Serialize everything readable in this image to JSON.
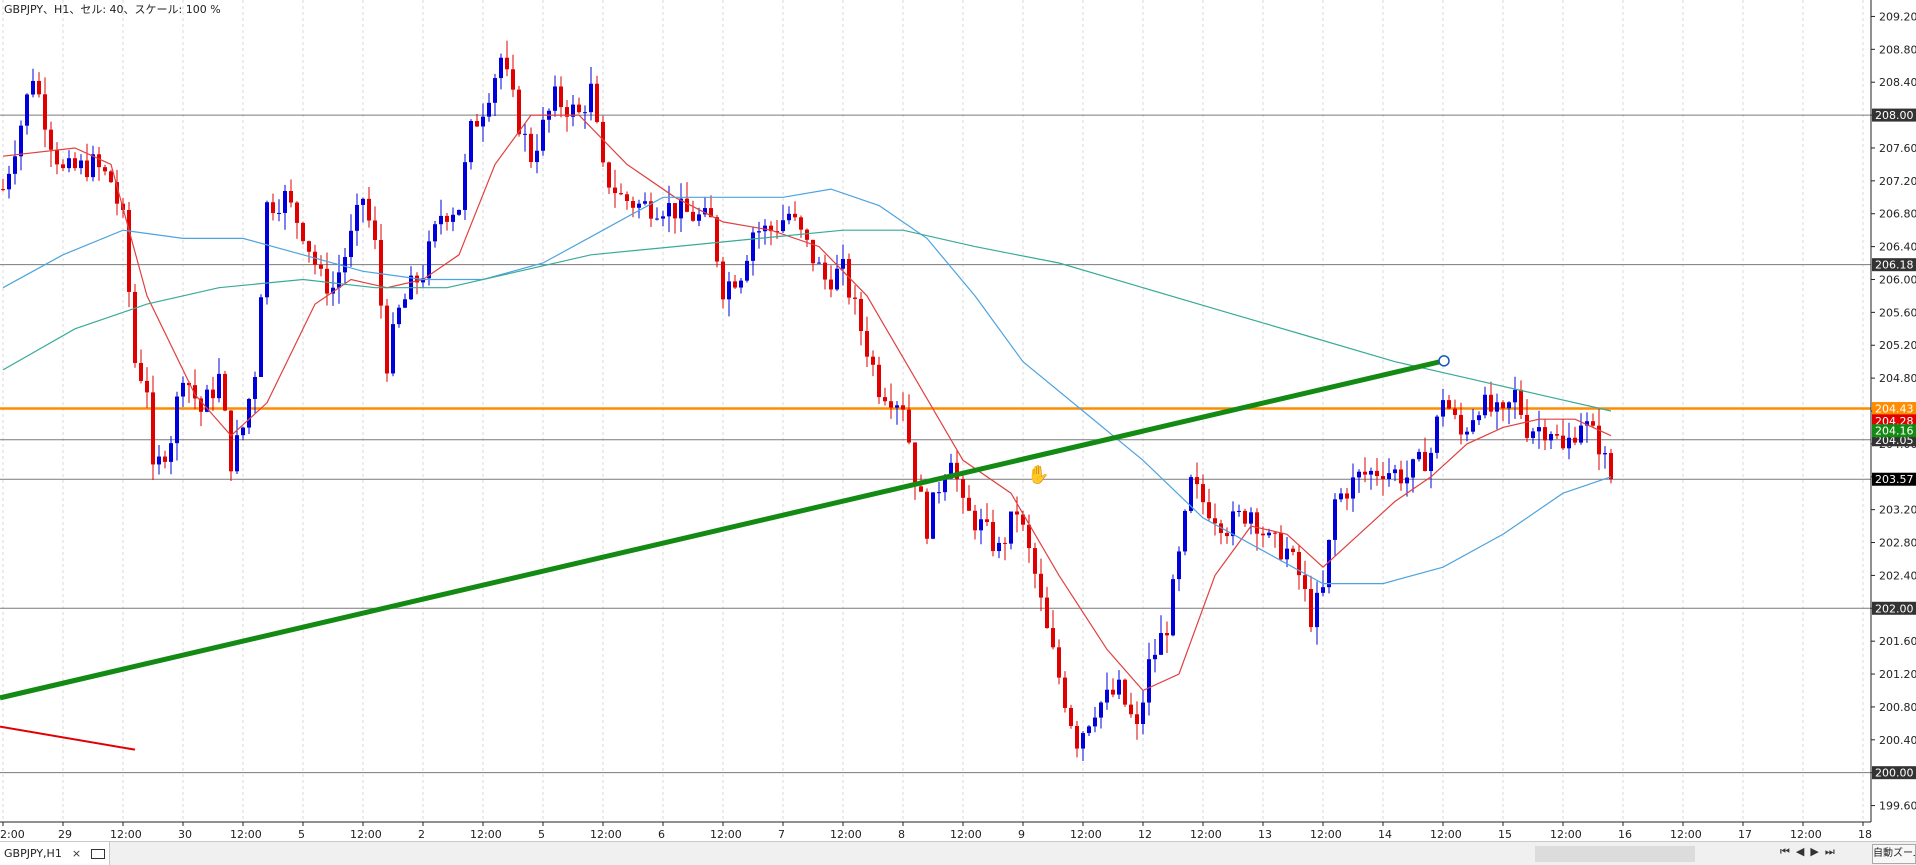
{
  "window": {
    "title": "GBPJPY、H1、セル: 40、スケール: 100 %"
  },
  "tab": {
    "label": "GBPJPY,H1",
    "close": "×"
  },
  "footer": {
    "nav": [
      "⏮",
      "◀",
      "▶",
      "⏭"
    ],
    "zoom_label": "自動ズーム"
  },
  "colors": {
    "bull": "#0000dd",
    "bear": "#e00000",
    "ma_red": "#e04040",
    "ma_blue": "#4da3e0",
    "ma_teal": "#3aaa98",
    "trend": "#138a13",
    "orange": "#ff8c00",
    "hline": "#7a7a7a"
  },
  "chart_data": {
    "type": "candlestick",
    "symbol": "GBPJPY",
    "timeframe": "H1",
    "ylim": [
      199.4,
      209.4
    ],
    "bars_count": 303,
    "y_ticks": [
      "209.20",
      "208.80",
      "208.40",
      "208.00",
      "207.60",
      "207.20",
      "206.80",
      "206.40",
      "206.00",
      "205.60",
      "205.20",
      "204.80",
      "204.40",
      "204.00",
      "203.60",
      "203.20",
      "202.80",
      "202.40",
      "202.00",
      "201.60",
      "201.20",
      "200.80",
      "200.40",
      "200.00",
      "199.60"
    ],
    "x_ticks": [
      {
        "bar": 0,
        "label": "2:00"
      },
      {
        "bar": 10,
        "label": "29"
      },
      {
        "bar": 20,
        "label": "12:00"
      },
      {
        "bar": 30,
        "label": "30"
      },
      {
        "bar": 40,
        "label": "12:00"
      },
      {
        "bar": 50,
        "label": "5"
      },
      {
        "bar": 60,
        "label": "12:00"
      },
      {
        "bar": 70,
        "label": "2"
      },
      {
        "bar": 80,
        "label": "12:00"
      },
      {
        "bar": 90,
        "label": "5"
      },
      {
        "bar": 100,
        "label": "12:00"
      },
      {
        "bar": 110,
        "label": "6"
      },
      {
        "bar": 120,
        "label": "12:00"
      },
      {
        "bar": 130,
        "label": "7"
      },
      {
        "bar": 140,
        "label": "12:00"
      },
      {
        "bar": 150,
        "label": "8"
      },
      {
        "bar": 160,
        "label": "12:00"
      },
      {
        "bar": 170,
        "label": "9"
      },
      {
        "bar": 180,
        "label": "12:00"
      },
      {
        "bar": 190,
        "label": "12"
      },
      {
        "bar": 200,
        "label": "12:00"
      },
      {
        "bar": 210,
        "label": "13"
      },
      {
        "bar": 220,
        "label": "12:00"
      },
      {
        "bar": 230,
        "label": "14"
      },
      {
        "bar": 240,
        "label": "12:00"
      },
      {
        "bar": 250,
        "label": "15"
      },
      {
        "bar": 260,
        "label": "12:00"
      },
      {
        "bar": 270,
        "label": "16"
      },
      {
        "bar": 280,
        "label": "12:00"
      },
      {
        "bar": 290,
        "label": "17"
      },
      {
        "bar": 300,
        "label": "12:00"
      },
      {
        "bar": 310,
        "label": "18"
      }
    ],
    "close_path": [
      [
        0,
        207.1
      ],
      [
        3,
        207.9
      ],
      [
        5,
        208.5
      ],
      [
        8,
        207.7
      ],
      [
        10,
        207.3
      ],
      [
        15,
        207.4
      ],
      [
        18,
        207.2
      ],
      [
        20,
        206.7
      ],
      [
        22,
        205.0
      ],
      [
        24,
        204.7
      ],
      [
        25,
        203.6
      ],
      [
        28,
        204.1
      ],
      [
        30,
        204.9
      ],
      [
        33,
        204.4
      ],
      [
        36,
        204.8
      ],
      [
        38,
        203.8
      ],
      [
        40,
        204.2
      ],
      [
        42,
        204.9
      ],
      [
        44,
        206.9
      ],
      [
        47,
        207.0
      ],
      [
        50,
        206.6
      ],
      [
        53,
        206.0
      ],
      [
        55,
        205.9
      ],
      [
        58,
        206.5
      ],
      [
        60,
        207.0
      ],
      [
        62,
        206.4
      ],
      [
        64,
        205.0
      ],
      [
        66,
        205.6
      ],
      [
        68,
        205.9
      ],
      [
        70,
        206.1
      ],
      [
        73,
        206.8
      ],
      [
        76,
        206.9
      ],
      [
        78,
        207.8
      ],
      [
        80,
        208.1
      ],
      [
        83,
        208.7
      ],
      [
        86,
        207.9
      ],
      [
        88,
        207.5
      ],
      [
        92,
        208.2
      ],
      [
        96,
        208.0
      ],
      [
        98,
        208.3
      ],
      [
        100,
        207.3
      ],
      [
        103,
        207.0
      ],
      [
        106,
        206.9
      ],
      [
        110,
        206.9
      ],
      [
        114,
        206.8
      ],
      [
        118,
        206.7
      ],
      [
        120,
        205.9
      ],
      [
        123,
        206.1
      ],
      [
        125,
        206.6
      ],
      [
        128,
        206.6
      ],
      [
        131,
        206.8
      ],
      [
        134,
        206.4
      ],
      [
        137,
        206.0
      ],
      [
        140,
        206.1
      ],
      [
        143,
        205.4
      ],
      [
        146,
        204.7
      ],
      [
        150,
        204.5
      ],
      [
        152,
        203.6
      ],
      [
        154,
        203.0
      ],
      [
        156,
        203.5
      ],
      [
        158,
        203.9
      ],
      [
        160,
        203.2
      ],
      [
        163,
        203.0
      ],
      [
        166,
        202.7
      ],
      [
        169,
        203.2
      ],
      [
        172,
        202.4
      ],
      [
        174,
        201.7
      ],
      [
        177,
        200.9
      ],
      [
        179,
        200.4
      ],
      [
        182,
        200.8
      ],
      [
        186,
        201.0
      ],
      [
        189,
        200.5
      ],
      [
        191,
        201.3
      ],
      [
        194,
        201.8
      ],
      [
        196,
        202.6
      ],
      [
        198,
        203.5
      ],
      [
        200,
        203.3
      ],
      [
        204,
        203.0
      ],
      [
        208,
        203.2
      ],
      [
        211,
        202.8
      ],
      [
        214,
        202.7
      ],
      [
        216,
        202.4
      ],
      [
        218,
        201.9
      ],
      [
        220,
        202.2
      ],
      [
        222,
        203.3
      ],
      [
        226,
        203.6
      ],
      [
        230,
        203.7
      ],
      [
        234,
        203.6
      ],
      [
        238,
        203.9
      ],
      [
        240,
        204.6
      ],
      [
        243,
        204.1
      ],
      [
        246,
        204.5
      ],
      [
        250,
        204.3
      ],
      [
        252,
        204.6
      ],
      [
        254,
        204.2
      ],
      [
        258,
        204.2
      ],
      [
        260,
        203.9
      ],
      [
        263,
        204.3
      ],
      [
        266,
        204.0
      ],
      [
        268,
        203.57
      ]
    ],
    "series": [
      {
        "type": "ma",
        "color": "red",
        "values": [
          [
            0,
            207.5
          ],
          [
            12,
            207.6
          ],
          [
            18,
            207.4
          ],
          [
            24,
            205.8
          ],
          [
            32,
            204.6
          ],
          [
            38,
            204.1
          ],
          [
            44,
            204.5
          ],
          [
            52,
            205.7
          ],
          [
            58,
            206.0
          ],
          [
            64,
            205.9
          ],
          [
            70,
            206.0
          ],
          [
            76,
            206.3
          ],
          [
            82,
            207.4
          ],
          [
            88,
            208.0
          ],
          [
            96,
            208.0
          ],
          [
            104,
            207.4
          ],
          [
            112,
            207.0
          ],
          [
            120,
            206.7
          ],
          [
            128,
            206.6
          ],
          [
            136,
            206.4
          ],
          [
            144,
            205.8
          ],
          [
            152,
            204.8
          ],
          [
            160,
            203.8
          ],
          [
            168,
            203.4
          ],
          [
            176,
            202.4
          ],
          [
            184,
            201.5
          ],
          [
            190,
            201.0
          ],
          [
            196,
            201.2
          ],
          [
            202,
            202.4
          ],
          [
            208,
            203.0
          ],
          [
            214,
            202.9
          ],
          [
            220,
            202.5
          ],
          [
            226,
            202.9
          ],
          [
            232,
            203.3
          ],
          [
            238,
            203.6
          ],
          [
            244,
            204.0
          ],
          [
            250,
            204.2
          ],
          [
            256,
            204.3
          ],
          [
            262,
            204.3
          ],
          [
            268,
            204.1
          ]
        ]
      },
      {
        "type": "ma",
        "color": "blue",
        "values": [
          [
            0,
            205.9
          ],
          [
            10,
            206.3
          ],
          [
            20,
            206.6
          ],
          [
            30,
            206.5
          ],
          [
            40,
            206.5
          ],
          [
            50,
            206.3
          ],
          [
            60,
            206.1
          ],
          [
            70,
            206.0
          ],
          [
            80,
            206.0
          ],
          [
            90,
            206.2
          ],
          [
            100,
            206.6
          ],
          [
            110,
            207.0
          ],
          [
            120,
            207.0
          ],
          [
            130,
            207.0
          ],
          [
            138,
            207.1
          ],
          [
            146,
            206.9
          ],
          [
            154,
            206.5
          ],
          [
            162,
            205.8
          ],
          [
            170,
            205.0
          ],
          [
            180,
            204.4
          ],
          [
            190,
            203.8
          ],
          [
            200,
            203.1
          ],
          [
            210,
            202.7
          ],
          [
            220,
            202.3
          ],
          [
            230,
            202.3
          ],
          [
            240,
            202.5
          ],
          [
            250,
            202.9
          ],
          [
            260,
            203.4
          ],
          [
            268,
            203.6
          ]
        ]
      },
      {
        "type": "ma",
        "color": "teal",
        "values": [
          [
            0,
            204.9
          ],
          [
            12,
            205.4
          ],
          [
            24,
            205.7
          ],
          [
            36,
            205.9
          ],
          [
            50,
            206.0
          ],
          [
            62,
            205.9
          ],
          [
            74,
            205.9
          ],
          [
            86,
            206.1
          ],
          [
            98,
            206.3
          ],
          [
            112,
            206.4
          ],
          [
            126,
            206.5
          ],
          [
            140,
            206.6
          ],
          [
            150,
            206.6
          ],
          [
            162,
            206.4
          ],
          [
            176,
            206.2
          ],
          [
            190,
            205.9
          ],
          [
            204,
            205.6
          ],
          [
            218,
            205.3
          ],
          [
            232,
            205.0
          ],
          [
            244,
            204.8
          ],
          [
            256,
            204.6
          ],
          [
            268,
            204.4
          ]
        ]
      },
      {
        "type": "trendline",
        "color": "green",
        "from": [
          0,
          200.91
        ],
        "to": [
          1444,
          205.01
        ],
        "x_units": "px"
      },
      {
        "type": "trendline",
        "color": "red",
        "from": [
          0,
          200.56
        ],
        "to": [
          135,
          200.28
        ],
        "x_units": "px"
      }
    ],
    "hlines": [
      {
        "price": 208.0,
        "label": "208.00",
        "color": "gray"
      },
      {
        "price": 206.18,
        "label": "206.18",
        "color": "gray"
      },
      {
        "price": 204.43,
        "label": "204.43",
        "color": "orange",
        "bold": true
      },
      {
        "price": 204.05,
        "label": "204.05",
        "color": "gray"
      },
      {
        "price": 203.57,
        "label": "203.57",
        "color": "gray",
        "current": true
      },
      {
        "price": 202.0,
        "label": "202.00",
        "color": "gray"
      },
      {
        "price": 200.0,
        "label": "200.00",
        "color": "gray"
      }
    ],
    "badges": [
      {
        "price": 204.28,
        "label": "204.28",
        "bg": "#e00000"
      },
      {
        "price": 204.16,
        "label": "204.16",
        "bg": "#138a13"
      }
    ],
    "annotations": [
      {
        "type": "thumbs-down-icon",
        "bar": 172,
        "price": 203.65
      }
    ]
  }
}
